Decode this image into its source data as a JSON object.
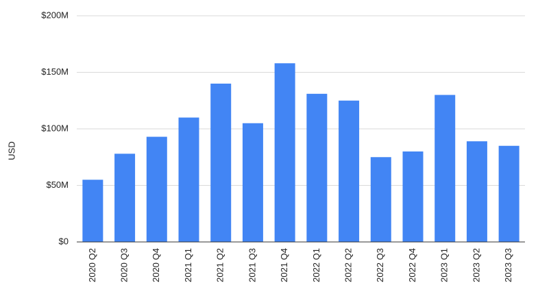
{
  "chart_data": {
    "type": "bar",
    "y_label": "USD",
    "categories": [
      "2020 Q2",
      "2020 Q3",
      "2020 Q4",
      "2021 Q1",
      "2021 Q2",
      "2021 Q3",
      "2021 Q4",
      "2022 Q1",
      "2022 Q2",
      "2022 Q3",
      "2022 Q4",
      "2023 Q1",
      "2023 Q2",
      "2023 Q3"
    ],
    "values": [
      55000000,
      78000000,
      93000000,
      110000000,
      140000000,
      105000000,
      158000000,
      131000000,
      125000000,
      75000000,
      80000000,
      130000000,
      89000000,
      85000000
    ],
    "color": "#4285f4",
    "ylim": [
      0,
      200000000
    ],
    "yticks": [
      {
        "value": 0,
        "label": "$0"
      },
      {
        "value": 50000000,
        "label": "$50M"
      },
      {
        "value": 100000000,
        "label": "$100M"
      },
      {
        "value": 150000000,
        "label": "$150M"
      },
      {
        "value": 200000000,
        "label": "$200M"
      }
    ],
    "grid": true
  }
}
